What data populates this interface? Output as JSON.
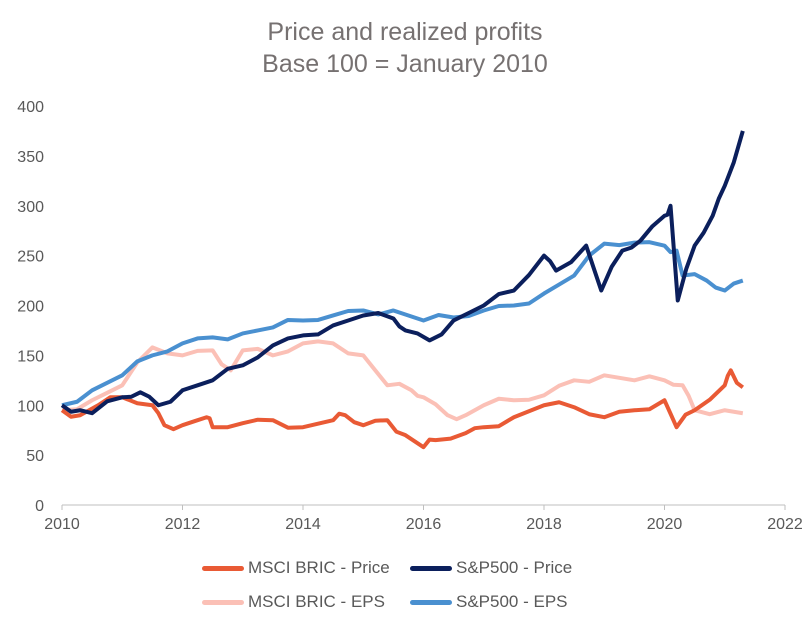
{
  "chart_data": {
    "type": "line",
    "title": "Price and realized profits",
    "subtitle": "Base 100 = January 2010",
    "xlabel": "",
    "ylabel": "",
    "xlim": [
      2010,
      2022
    ],
    "ylim": [
      0,
      400
    ],
    "x_ticks": [
      "2010",
      "2012",
      "2014",
      "2016",
      "2018",
      "2020",
      "2022"
    ],
    "y_ticks": [
      "0",
      "50",
      "100",
      "150",
      "200",
      "250",
      "300",
      "350",
      "400"
    ],
    "grid": false,
    "legend_position": "bottom",
    "series": [
      {
        "name": "MSCI BRIC - Price",
        "color": "#E95A35",
        "x": [
          2010,
          2010.3,
          2010.6,
          2011,
          2011.5,
          2011.7,
          2012,
          2012.4,
          2012.5,
          2013,
          2013.5,
          2014,
          2014.5,
          2014.7,
          2015,
          2015.4,
          2015.7,
          2016,
          2016.2,
          2016.7,
          2017,
          2017.5,
          2018,
          2018.5,
          2019,
          2019.5,
          2020,
          2020.2,
          2020.5,
          2021,
          2021.1,
          2021.3
        ],
        "y": [
          95,
          90,
          100,
          108,
          100,
          80,
          80,
          88,
          78,
          82,
          85,
          78,
          85,
          90,
          80,
          85,
          70,
          58,
          65,
          72,
          78,
          88,
          100,
          98,
          88,
          95,
          105,
          78,
          95,
          120,
          135,
          118
        ]
      },
      {
        "name": "S&P500 - Price",
        "color": "#0B1F5C",
        "x": [
          2010,
          2010.3,
          2010.5,
          2011,
          2011.3,
          2011.6,
          2012,
          2012.5,
          2013,
          2013.5,
          2014,
          2014.5,
          2015,
          2015.5,
          2015.7,
          2016.1,
          2016.5,
          2017,
          2017.5,
          2018,
          2018.2,
          2018.7,
          2018.95,
          2019.3,
          2019.6,
          2020,
          2020.1,
          2020.22,
          2020.5,
          2020.8,
          2021,
          2021.3
        ],
        "y": [
          100,
          95,
          92,
          108,
          113,
          100,
          115,
          125,
          140,
          160,
          170,
          180,
          190,
          187,
          175,
          165,
          185,
          200,
          215,
          250,
          235,
          260,
          215,
          255,
          265,
          290,
          300,
          205,
          260,
          290,
          320,
          375
        ]
      },
      {
        "name": "MSCI BRIC - EPS",
        "color": "#FBC0B6",
        "x": [
          2010,
          2010.5,
          2011,
          2011.5,
          2012,
          2012.5,
          2012.8,
          2013,
          2013.5,
          2014,
          2014.5,
          2015,
          2015.4,
          2015.8,
          2016,
          2016.4,
          2016.7,
          2017,
          2017.5,
          2018,
          2018.5,
          2019,
          2019.5,
          2020,
          2020.3,
          2020.5,
          2021,
          2021.3
        ],
        "y": [
          95,
          105,
          120,
          158,
          150,
          155,
          135,
          155,
          150,
          162,
          162,
          150,
          120,
          115,
          108,
          90,
          90,
          100,
          105,
          110,
          125,
          130,
          125,
          125,
          120,
          95,
          95,
          92
        ]
      },
      {
        "name": "S&P500 - EPS",
        "color": "#4A90D0",
        "x": [
          2010,
          2010.5,
          2011,
          2011.5,
          2012,
          2012.5,
          2013,
          2013.5,
          2014,
          2014.5,
          2015,
          2015.5,
          2016,
          2016.5,
          2017,
          2017.5,
          2018,
          2018.5,
          2019,
          2019.5,
          2020,
          2020.2,
          2020.3,
          2020.7,
          2021,
          2021.3
        ],
        "y": [
          100,
          115,
          130,
          150,
          162,
          168,
          172,
          178,
          185,
          190,
          195,
          195,
          185,
          188,
          195,
          200,
          212,
          230,
          262,
          263,
          260,
          255,
          230,
          225,
          215,
          225
        ]
      }
    ]
  }
}
